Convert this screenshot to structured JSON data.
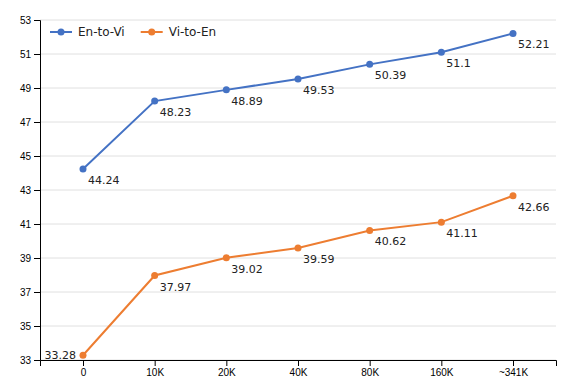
{
  "chart_data": {
    "type": "line",
    "categories": [
      "0",
      "10K",
      "20K",
      "40K",
      "80K",
      "160K",
      "~341K"
    ],
    "series": [
      {
        "name": "En-to-Vi",
        "color": "#4472C4",
        "marker": "circle",
        "values": [
          44.24,
          48.23,
          48.89,
          49.53,
          50.39,
          51.1,
          52.21
        ]
      },
      {
        "name": "Vi-to-En",
        "color": "#ED7D31",
        "marker": "circle",
        "values": [
          33.28,
          37.97,
          39.02,
          39.59,
          40.62,
          41.11,
          42.66
        ]
      }
    ],
    "ylim": [
      33,
      53
    ],
    "yticks": [
      33,
      35,
      37,
      39,
      41,
      43,
      45,
      47,
      49,
      51,
      53
    ],
    "grid": true,
    "legend": "upper left",
    "data_labels": true
  }
}
